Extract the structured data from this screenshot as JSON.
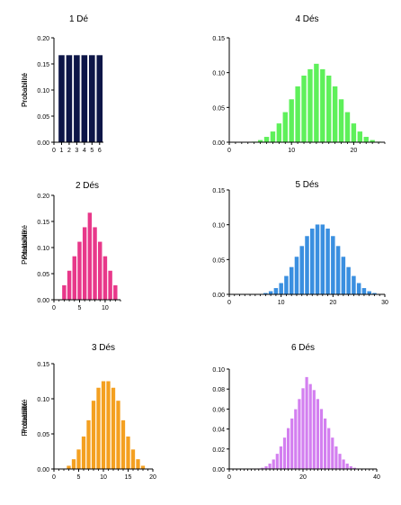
{
  "chart_data": [
    {
      "type": "bar",
      "title": "1 Dé",
      "ylabel": "Probabilité",
      "xlabel": "",
      "color": "#0d1547",
      "x": [
        1,
        2,
        3,
        4,
        5,
        6
      ],
      "values": [
        0.1667,
        0.1667,
        0.1667,
        0.1667,
        0.1667,
        0.1667
      ],
      "xlim": [
        0,
        6.5
      ],
      "ylim": [
        0,
        0.2
      ],
      "xticks": [
        0,
        1,
        2,
        3,
        4,
        5,
        6
      ],
      "yticks": [
        "0.00",
        "0.05",
        "0.10",
        "0.15",
        "0.20"
      ]
    },
    {
      "type": "bar",
      "title": "4 Dés",
      "ylabel": "Probabilité",
      "xlabel": "",
      "color": "#5ef05a",
      "x": [
        4,
        5,
        6,
        7,
        8,
        9,
        10,
        11,
        12,
        13,
        14,
        15,
        16,
        17,
        18,
        19,
        20,
        21,
        22,
        23,
        24
      ],
      "values": [
        0.0008,
        0.0031,
        0.0077,
        0.0154,
        0.027,
        0.0432,
        0.0617,
        0.0802,
        0.0957,
        0.1049,
        0.1127,
        0.1049,
        0.0957,
        0.0802,
        0.0617,
        0.0432,
        0.027,
        0.0154,
        0.0077,
        0.0031,
        0.0008
      ],
      "xlim": [
        0,
        25
      ],
      "ylim": [
        0,
        0.15
      ],
      "xticks": [
        0,
        10,
        20
      ],
      "yticks": [
        "0.00",
        "0.05",
        "0.10",
        "0.15"
      ]
    },
    {
      "type": "bar",
      "title": "2 Dés",
      "ylabel": "Probabilité",
      "xlabel": "",
      "color": "#e8388a",
      "x": [
        2,
        3,
        4,
        5,
        6,
        7,
        8,
        9,
        10,
        11,
        12
      ],
      "values": [
        0.0278,
        0.0556,
        0.0833,
        0.1111,
        0.1389,
        0.1667,
        0.1389,
        0.1111,
        0.0833,
        0.0556,
        0.0278
      ],
      "xlim": [
        0,
        13
      ],
      "ylim": [
        0,
        0.2
      ],
      "xticks": [
        0,
        5,
        10
      ],
      "yticks": [
        "0.00",
        "0.05",
        "0.10",
        "0.15",
        "0.20"
      ]
    },
    {
      "type": "bar",
      "title": "5 Dés",
      "ylabel": "Probabilité",
      "xlabel": "",
      "color": "#3a8fe0",
      "x": [
        5,
        6,
        7,
        8,
        9,
        10,
        11,
        12,
        13,
        14,
        15,
        16,
        17,
        18,
        19,
        20,
        21,
        22,
        23,
        24,
        25,
        26,
        27,
        28,
        29,
        30
      ],
      "values": [
        0.0001,
        0.0006,
        0.0019,
        0.0045,
        0.009,
        0.0162,
        0.0264,
        0.0392,
        0.054,
        0.0694,
        0.0837,
        0.0945,
        0.1003,
        0.1003,
        0.0945,
        0.0837,
        0.0694,
        0.054,
        0.0392,
        0.0264,
        0.0162,
        0.009,
        0.0045,
        0.0019,
        0.0006,
        0.0001
      ],
      "xlim": [
        0,
        30
      ],
      "ylim": [
        0,
        0.15
      ],
      "xticks": [
        0,
        10,
        20,
        30
      ],
      "yticks": [
        "0.00",
        "0.05",
        "0.10",
        "0.15"
      ]
    },
    {
      "type": "bar",
      "title": "3 Dés",
      "ylabel": "Probabilité",
      "xlabel": "",
      "color": "#f4a020",
      "x": [
        3,
        4,
        5,
        6,
        7,
        8,
        9,
        10,
        11,
        12,
        13,
        14,
        15,
        16,
        17,
        18
      ],
      "values": [
        0.0046,
        0.0139,
        0.0278,
        0.0463,
        0.0694,
        0.0972,
        0.1157,
        0.125,
        0.125,
        0.1157,
        0.0972,
        0.0694,
        0.0463,
        0.0278,
        0.0139,
        0.0046
      ],
      "xlim": [
        0,
        20
      ],
      "ylim": [
        0,
        0.15
      ],
      "xticks": [
        0,
        5,
        10,
        15,
        20
      ],
      "yticks": [
        "0.00",
        "0.05",
        "0.10",
        "0.15"
      ]
    },
    {
      "type": "bar",
      "title": "6 Dés",
      "ylabel": "Probabilité",
      "xlabel": "",
      "color": "#d37ff0",
      "x": [
        6,
        7,
        8,
        9,
        10,
        11,
        12,
        13,
        14,
        15,
        16,
        17,
        18,
        19,
        20,
        21,
        22,
        23,
        24,
        25,
        26,
        27,
        28,
        29,
        30,
        31,
        32,
        33,
        34,
        35,
        36
      ],
      "values": [
        2e-05,
        0.0001,
        0.0005,
        0.0012,
        0.0027,
        0.0054,
        0.0095,
        0.0152,
        0.0226,
        0.0314,
        0.0409,
        0.0505,
        0.0598,
        0.07,
        0.0808,
        0.092,
        0.085,
        0.079,
        0.07,
        0.06,
        0.0505,
        0.0409,
        0.0314,
        0.0226,
        0.0152,
        0.0095,
        0.0054,
        0.0027,
        0.0012,
        0.0005,
        0.0001
      ],
      "xlim": [
        0,
        40
      ],
      "ylim": [
        0,
        0.1
      ],
      "xticks": [
        0,
        20,
        40
      ],
      "yticks": [
        "0.00",
        "0.02",
        "0.04",
        "0.06",
        "0.08",
        "0.10"
      ]
    }
  ]
}
